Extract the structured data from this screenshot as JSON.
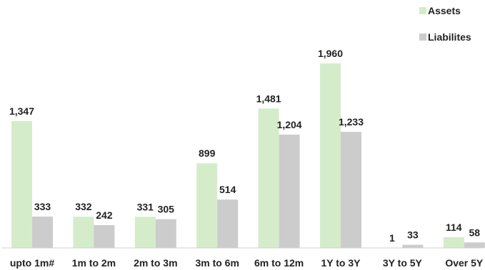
{
  "chart_data": {
    "type": "bar",
    "categories": [
      "upto 1m#",
      "1m to 2m",
      "2m to 3m",
      "3m to 6m",
      "6m to 12m",
      "1Y to 3Y",
      "3Y to 5Y",
      "Over 5Y"
    ],
    "series": [
      {
        "name": "Assets",
        "color": "#d5ecca",
        "values": [
          1347,
          332,
          331,
          899,
          1481,
          1960,
          1,
          114
        ],
        "labels": [
          "1,347",
          "332",
          "331",
          "899",
          "1,481",
          "1,960",
          "1",
          "114"
        ]
      },
      {
        "name": "Liabilites",
        "color": "#cccccc",
        "values": [
          333,
          242,
          305,
          514,
          1204,
          1233,
          33,
          58
        ],
        "labels": [
          "333",
          "242",
          "305",
          "514",
          "1,204",
          "1,233",
          "33",
          "58"
        ]
      }
    ],
    "ylim": [
      0,
      1960
    ],
    "grid": false,
    "legend_position": "top-right",
    "axis_color": "#d0d0d0"
  }
}
